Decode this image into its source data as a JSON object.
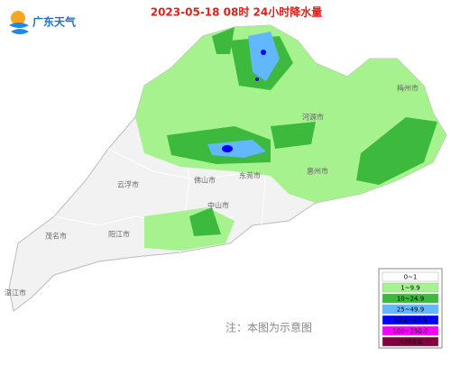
{
  "header": {
    "logo_text": "广东天气",
    "title": "2023-05-18 08时 24小时降水量"
  },
  "map": {
    "city_labels": [
      "梅州市",
      "河源市",
      "惠州市",
      "云浮市",
      "佛山市",
      "东莞市",
      "中山市",
      "阳江市",
      "茂名市",
      "湛江市"
    ]
  },
  "legend": {
    "items": [
      {
        "label": "0~1",
        "color": "#ffffff"
      },
      {
        "label": "1~9.9",
        "color": "#a6f28f"
      },
      {
        "label": "10~24.9",
        "color": "#3dba3d"
      },
      {
        "label": "25~49.9",
        "color": "#61b8ff"
      },
      {
        "label": "50.0~99.9",
        "color": "#0000ff"
      },
      {
        "label": "100~250.0",
        "color": "#fa00fa"
      },
      {
        "label": ">250.0",
        "color": "#800040"
      }
    ]
  },
  "note": "注：本图为示意图"
}
